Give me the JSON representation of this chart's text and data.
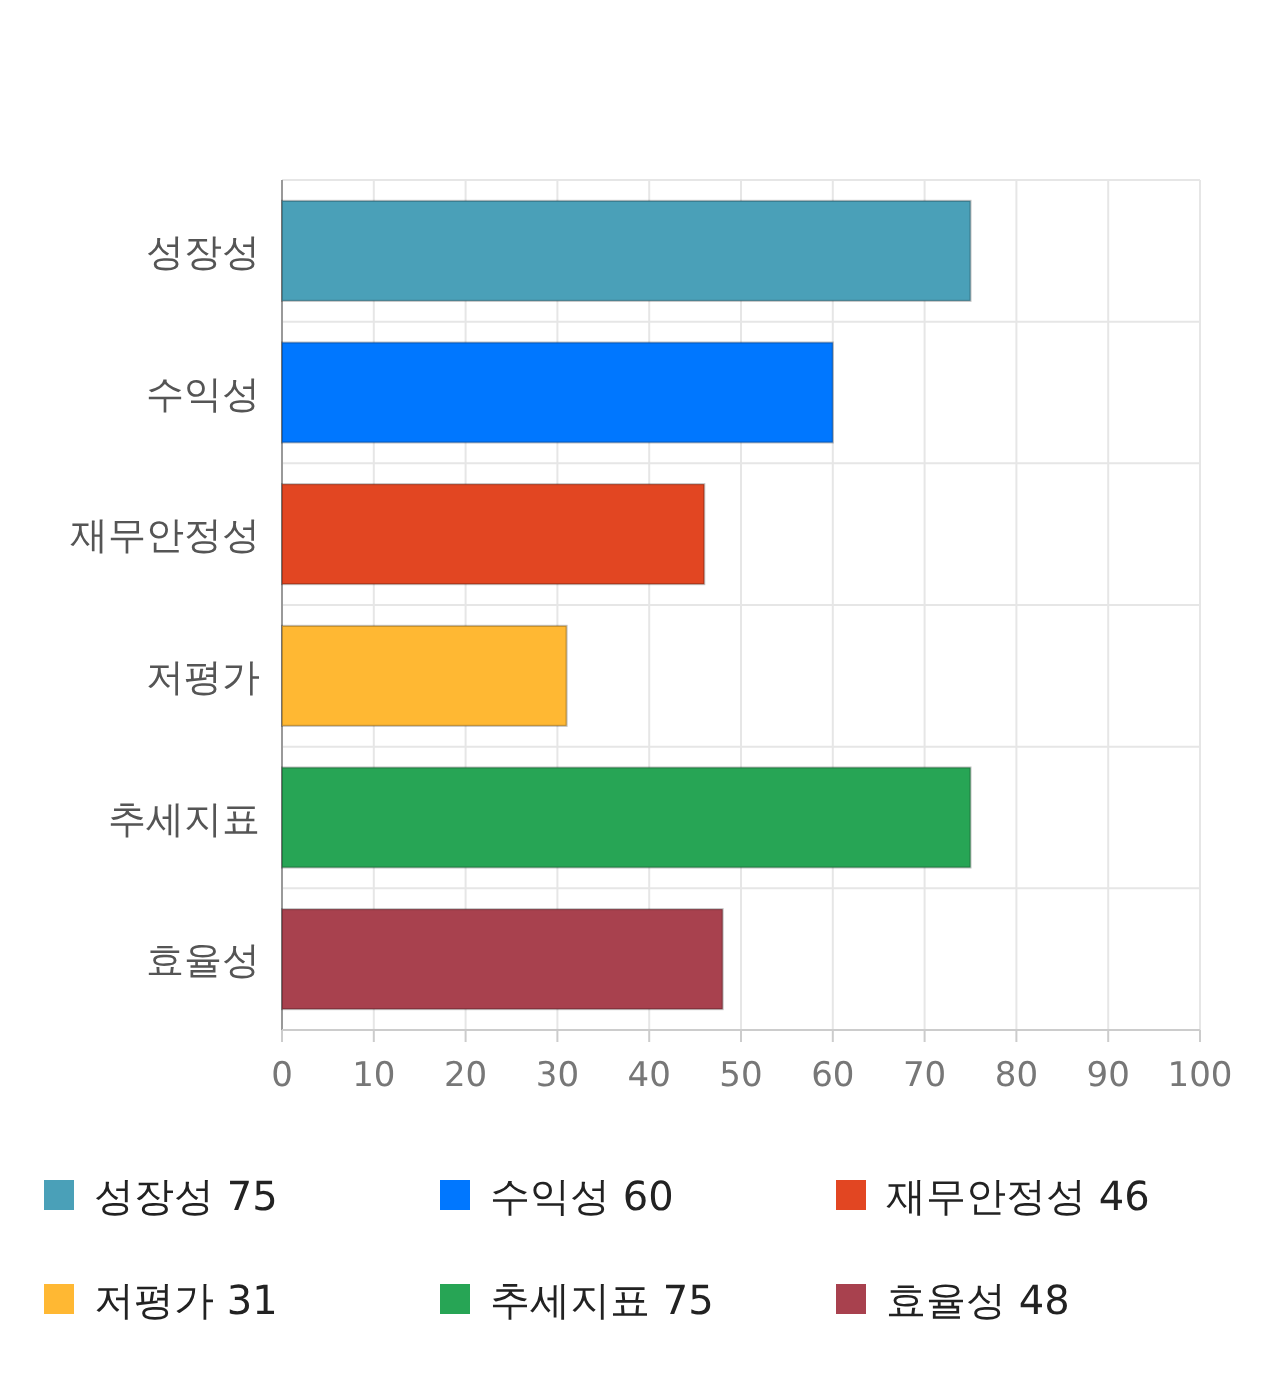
{
  "chart_data": {
    "type": "bar",
    "orientation": "horizontal",
    "stacked": true,
    "categories": [
      "성장성",
      "수익성",
      "재무안정성",
      "저평가",
      "추세지표",
      "효율성"
    ],
    "series": [
      {
        "name": "성장성 75",
        "color": "#4aa0b8",
        "values": [
          75,
          null,
          null,
          null,
          null,
          null
        ]
      },
      {
        "name": "수익성 60",
        "color": "#0077ff",
        "values": [
          null,
          60,
          null,
          null,
          null,
          null
        ]
      },
      {
        "name": "재무안정성 46",
        "color": "#e24622",
        "values": [
          null,
          null,
          46,
          null,
          null,
          null
        ]
      },
      {
        "name": "저평가 31",
        "color": "#ffb833",
        "values": [
          null,
          null,
          null,
          31,
          null,
          null
        ]
      },
      {
        "name": "추세지표 75",
        "color": "#27a555",
        "values": [
          null,
          null,
          null,
          null,
          75,
          null
        ]
      },
      {
        "name": "효율성 48",
        "color": "#a8414e",
        "values": [
          null,
          null,
          null,
          null,
          null,
          48
        ]
      }
    ],
    "xlim": [
      0,
      100
    ],
    "xticks": [
      0,
      10,
      20,
      30,
      40,
      50,
      60,
      70,
      80,
      90,
      100
    ],
    "grid": true,
    "legend": "bottom"
  }
}
